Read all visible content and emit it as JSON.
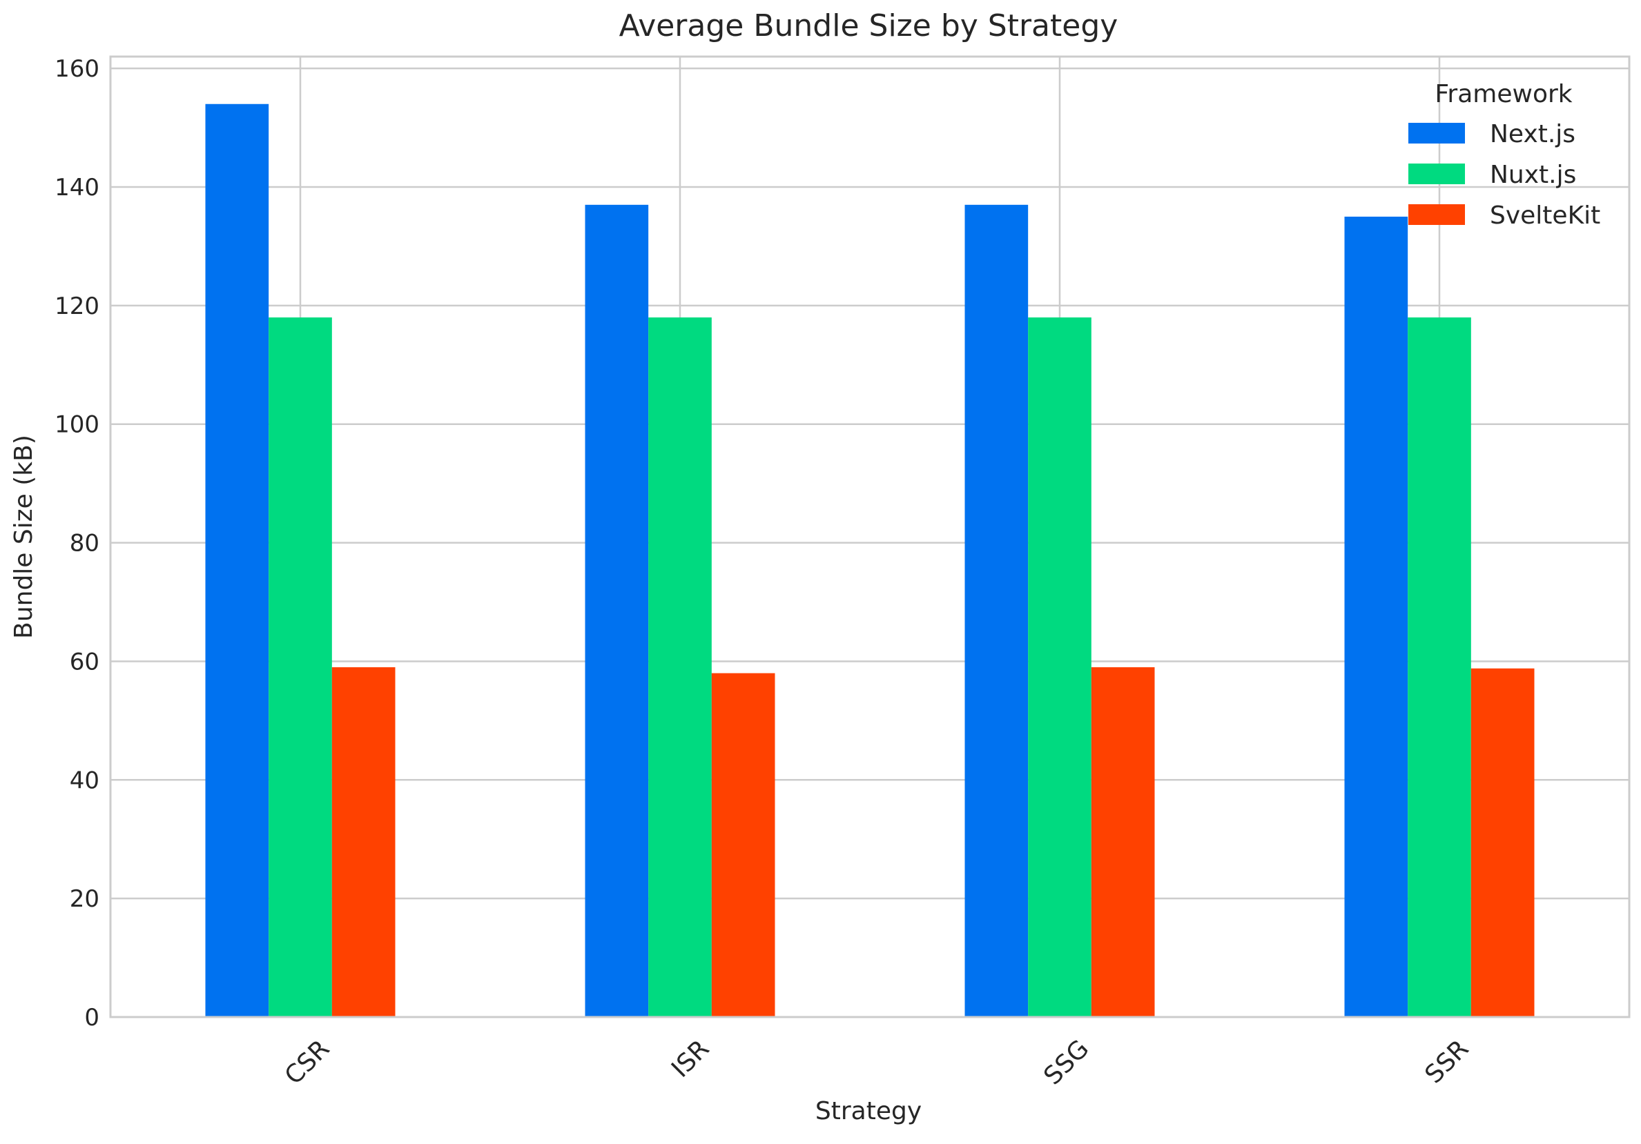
{
  "chart_data": {
    "type": "bar",
    "title": "Average Bundle Size by Strategy",
    "xlabel": "Strategy",
    "ylabel": "Bundle Size (kB)",
    "categories": [
      "CSR",
      "ISR",
      "SSG",
      "SSR"
    ],
    "series": [
      {
        "name": "Next.js",
        "color": "#0072F0",
        "values": [
          154,
          137,
          137,
          135
        ]
      },
      {
        "name": "Nuxt.js",
        "color": "#00DA80",
        "values": [
          118,
          118,
          118,
          118
        ]
      },
      {
        "name": "SvelteKit",
        "color": "#FF4100",
        "values": [
          59,
          58,
          59,
          58.8
        ]
      }
    ],
    "ylim": [
      0,
      162
    ],
    "yticks": [
      0,
      20,
      40,
      60,
      80,
      100,
      120,
      140,
      160
    ],
    "grid": true,
    "legend": {
      "title": "Framework",
      "placement": "top-right"
    }
  }
}
